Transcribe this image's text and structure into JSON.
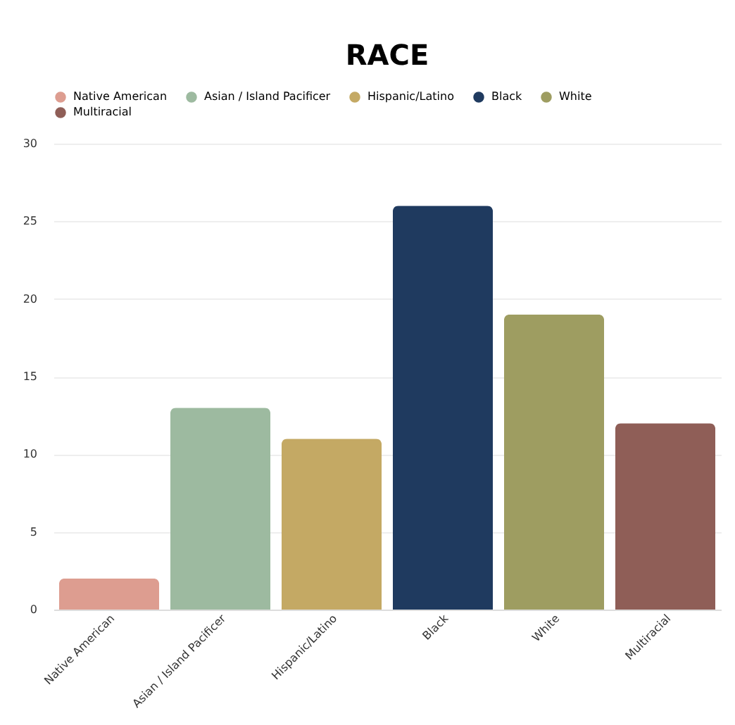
{
  "chart_data": {
    "type": "bar",
    "title": "RACE",
    "stacked": true,
    "categories": [
      "Native American",
      "Asian / Island Pacificer",
      "Hispanic/Latino",
      "Black",
      "White",
      "Multiracial"
    ],
    "series": [
      {
        "name": "Native American",
        "color": "#dd9d90",
        "values": [
          2,
          null,
          null,
          null,
          null,
          null
        ]
      },
      {
        "name": "Asian / Island Pacificer",
        "color": "#9dbaa0",
        "values": [
          null,
          13,
          null,
          null,
          null,
          null
        ]
      },
      {
        "name": "Hispanic/Latino",
        "color": "#c4a964",
        "values": [
          null,
          null,
          11,
          null,
          null,
          null
        ]
      },
      {
        "name": "Black",
        "color": "#1f3a5f",
        "values": [
          null,
          null,
          null,
          26,
          null,
          null
        ]
      },
      {
        "name": "White",
        "color": "#9e9d61",
        "values": [
          null,
          null,
          null,
          null,
          19,
          null
        ]
      },
      {
        "name": "Multiracial",
        "color": "#8f5e57",
        "values": [
          null,
          null,
          null,
          null,
          null,
          12
        ]
      }
    ],
    "ylim": [
      0,
      30
    ],
    "yticks": [
      0,
      5,
      10,
      15,
      20,
      25,
      30
    ],
    "grid": "y",
    "legend": "top"
  }
}
